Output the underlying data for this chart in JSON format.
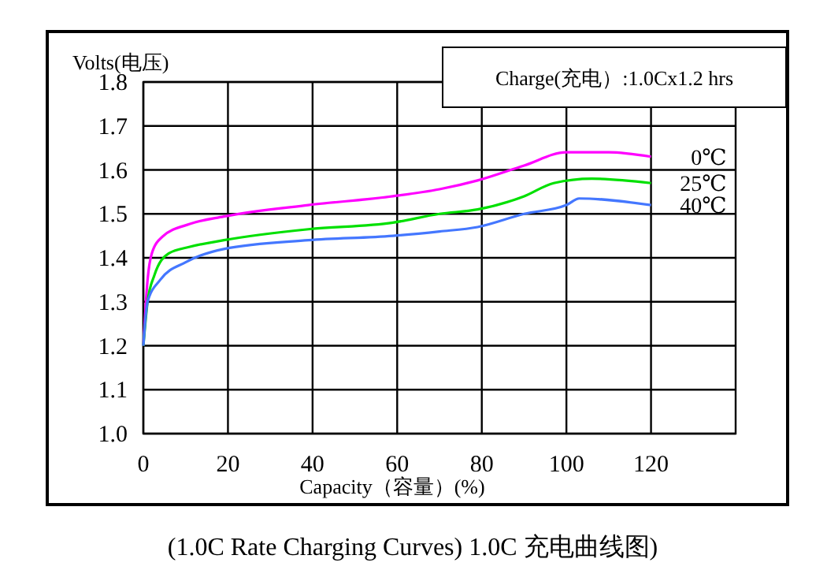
{
  "chart_data": {
    "type": "line",
    "title": "(1.0C Rate Charging Curves) 1.0C 充电曲线图)",
    "xlabel": "Capacity（容量）(%)",
    "ylabel": "Volts(电压)",
    "annotations": [
      "Charge(充电）:1.0Cx1.2 hrs"
    ],
    "xlim": [
      0,
      140
    ],
    "xticks": [
      0,
      20,
      40,
      60,
      80,
      100,
      120
    ],
    "ylim": [
      1.0,
      1.8
    ],
    "yticks": [
      {
        "value": 1.0,
        "label": "1.0"
      },
      1.1,
      1.2,
      1.3,
      1.4,
      1.5,
      1.6,
      1.7,
      1.8
    ],
    "grid": true,
    "series": [
      {
        "name": "0℃",
        "color": "#ff00ff",
        "x": [
          0,
          1,
          2,
          4.5,
          11,
          19,
          39,
          59,
          70,
          79,
          90,
          100,
          110,
          120
        ],
        "values": [
          1.2,
          1.35,
          1.41,
          1.448,
          1.477,
          1.494,
          1.52,
          1.54,
          1.556,
          1.576,
          1.61,
          1.64,
          1.64,
          1.63
        ]
      },
      {
        "name": "25℃",
        "color": "#00e000",
        "x": [
          0,
          1,
          2.6,
          6,
          11,
          19,
          39,
          59,
          70,
          79,
          90,
          97,
          106,
          120
        ],
        "values": [
          1.2,
          1.3,
          1.36,
          1.41,
          1.425,
          1.44,
          1.465,
          1.48,
          1.5,
          1.51,
          1.54,
          1.57,
          1.58,
          1.57
        ]
      },
      {
        "name": "40℃",
        "color": "#4477ff",
        "x": [
          0,
          1,
          4,
          10,
          19,
          39,
          59,
          70,
          79,
          90,
          100,
          103,
          120
        ],
        "values": [
          1.2,
          1.3,
          1.35,
          1.39,
          1.42,
          1.44,
          1.45,
          1.46,
          1.47,
          1.5,
          1.52,
          1.535,
          1.52
        ]
      }
    ]
  }
}
